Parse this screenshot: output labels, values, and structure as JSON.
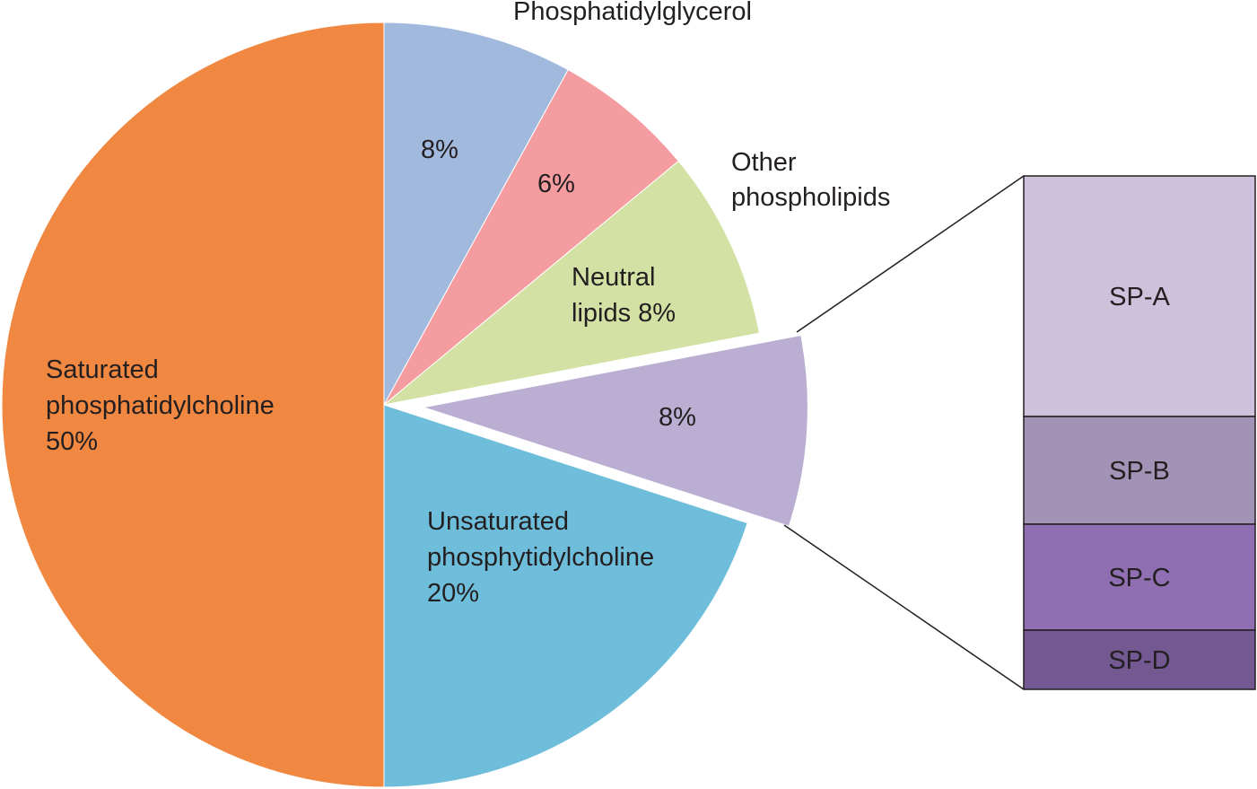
{
  "chart_data": {
    "type": "pie",
    "unit": "%",
    "start_angle_deg": 0,
    "direction": "clockwise",
    "slices": [
      {
        "label": [
          "Phosphatidylglycerol"
        ],
        "value": 8,
        "value_text": "8%",
        "color": "#a2b9de"
      },
      {
        "label": [],
        "value": 6,
        "value_text": "6%",
        "color": "#f49c9f"
      },
      {
        "label": [
          "Neutral",
          "lipids 8%"
        ],
        "value": 8,
        "value_text": "",
        "color": "#d3e2a4"
      },
      {
        "label": [],
        "value": 8,
        "value_text": "8%",
        "color": "#bbaed3",
        "exploded": true,
        "breakout": true
      },
      {
        "label": [
          "Unsaturated",
          "phosphytidylcholine",
          "20%"
        ],
        "value": 20,
        "value_text": "",
        "color": "#6ebedb"
      },
      {
        "label": [
          "Saturated",
          "phosphatidylcholine",
          "50%"
        ],
        "value": 50,
        "value_text": "",
        "color": "#f18841"
      }
    ],
    "annotations": [
      {
        "text": [
          "Other",
          "phospholipids"
        ],
        "refers_to_slice": 1
      }
    ],
    "breakout_bar": {
      "of_slice": 3,
      "segments": [
        {
          "label": "SP-A",
          "color": "#cdc1dc"
        },
        {
          "label": "SP-B",
          "color": "#a293b6"
        },
        {
          "label": "SP-C",
          "color": "#8f6fb1"
        },
        {
          "label": "SP-D",
          "color": "#735891"
        }
      ]
    }
  }
}
